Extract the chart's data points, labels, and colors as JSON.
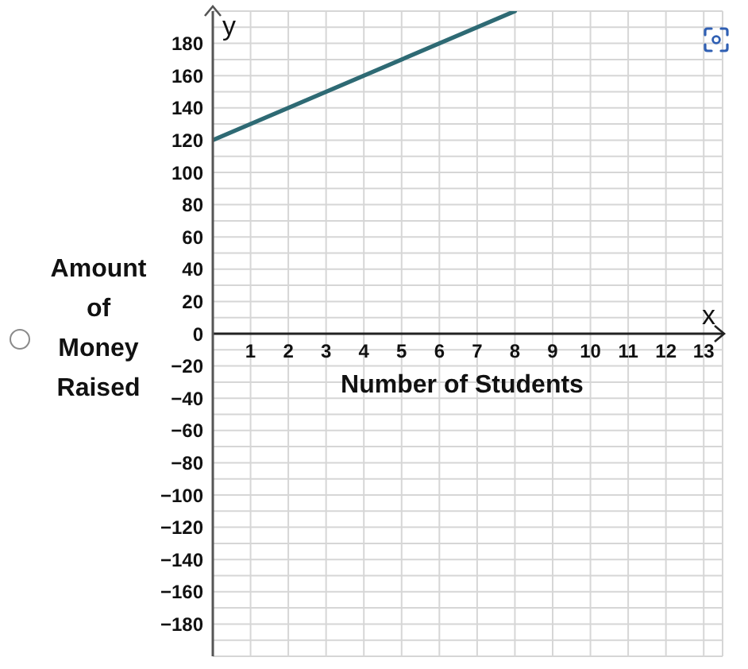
{
  "chart_data": {
    "type": "line",
    "xlabel": "Number of Students",
    "ylabel": "Amount of Money Raised",
    "annotations": [
      "y",
      "x"
    ],
    "x": [
      0,
      8
    ],
    "series": [
      {
        "color": "#2e6a74",
        "values": [
          120,
          200
        ]
      }
    ],
    "xlim": [
      0,
      13.5
    ],
    "xticks": [
      1,
      2,
      3,
      4,
      5,
      6,
      7,
      8,
      9,
      10,
      11,
      12,
      13
    ],
    "ylim": [
      -200,
      200
    ],
    "yticks": [
      {
        "value": -190,
        "label": null
      },
      {
        "value": -180,
        "label": "−180"
      },
      {
        "value": -170,
        "label": null
      },
      {
        "value": -160,
        "label": "−160"
      },
      {
        "value": -150,
        "label": null
      },
      {
        "value": -140,
        "label": "−140"
      },
      {
        "value": -130,
        "label": null
      },
      {
        "value": -120,
        "label": "−120"
      },
      {
        "value": -110,
        "label": null
      },
      {
        "value": -100,
        "label": "−100"
      },
      {
        "value": -90,
        "label": null
      },
      {
        "value": -80,
        "label": "−80"
      },
      {
        "value": -70,
        "label": null
      },
      {
        "value": -60,
        "label": "−60"
      },
      {
        "value": -50,
        "label": null
      },
      {
        "value": -40,
        "label": "−40"
      },
      {
        "value": -30,
        "label": null
      },
      {
        "value": -20,
        "label": "−20"
      },
      {
        "value": -10,
        "label": null
      },
      0,
      {
        "value": 10,
        "label": null
      },
      20,
      {
        "value": 30,
        "label": null
      },
      40,
      {
        "value": 50,
        "label": null
      },
      60,
      {
        "value": 70,
        "label": null
      },
      80,
      {
        "value": 90,
        "label": null
      },
      100,
      {
        "value": 110,
        "label": null
      },
      120,
      {
        "value": 130,
        "label": null
      },
      140,
      {
        "value": 150,
        "label": null
      },
      160,
      {
        "value": 170,
        "label": null
      },
      180,
      {
        "value": 190,
        "label": null
      }
    ],
    "grid": true
  }
}
